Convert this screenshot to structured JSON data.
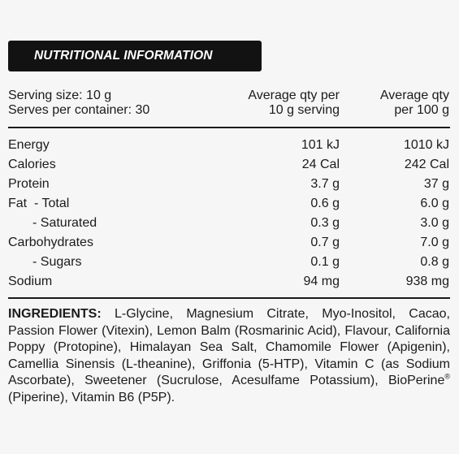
{
  "header": {
    "title": "NUTRITIONAL INFORMATION"
  },
  "serving": {
    "size": "Serving size: 10 g",
    "per_container": "Serves per container: 30",
    "col1_line1": "Average qty per",
    "col1_line2": "10 g serving",
    "col2_line1": "Average qty",
    "col2_line2": "per 100 g"
  },
  "rows": [
    {
      "label": "Energy",
      "per_serving": "101 kJ",
      "per_100g": "1010 kJ"
    },
    {
      "label": "Calories",
      "per_serving": "24 Cal",
      "per_100g": "242 Cal"
    },
    {
      "label": "Protein",
      "per_serving": "3.7 g",
      "per_100g": "37 g"
    },
    {
      "label": "Fat  - Total",
      "per_serving": "0.6 g",
      "per_100g": "6.0 g"
    },
    {
      "label": "- Saturated",
      "per_serving": "0.3 g",
      "per_100g": "3.0 g"
    },
    {
      "label": "Carbohydrates",
      "per_serving": "0.7 g",
      "per_100g": "7.0 g"
    },
    {
      "label": "- Sugars",
      "per_serving": "0.1 g",
      "per_100g": "0.8 g"
    },
    {
      "label": "Sodium",
      "per_serving": "94 mg",
      "per_100g": "938 mg"
    }
  ],
  "ingredients": {
    "label": "INGREDIENTS:",
    "text_before": " L-Glycine, Magnesium Citrate, Myo-Inositol, Cacao, Passion Flower (Vitexin), Lemon Balm (Rosmarinic Acid), Flavour, California Poppy (Protopine), Himalayan Sea Salt, Chamomile Flower (Apigenin), Camellia Sinensis (L-theanine), Griffonia (5-HTP), Vitamin C (as Sodium Ascorbate), Sweetener (Sucrulose, Acesulfame Potassium), BioPerine",
    "registered_mark": "®",
    "text_after": " (Piperine), Vitamin B6 (P5P)."
  }
}
